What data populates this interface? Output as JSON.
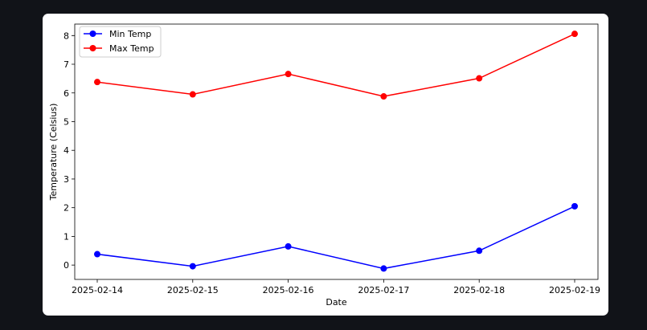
{
  "chart_data": {
    "type": "line",
    "categories": [
      "2025-02-14",
      "2025-02-15",
      "2025-02-16",
      "2025-02-17",
      "2025-02-18",
      "2025-02-19"
    ],
    "series": [
      {
        "name": "Min Temp",
        "color": "#0000ff",
        "values": [
          0.38,
          -0.04,
          0.65,
          -0.12,
          0.5,
          2.05
        ]
      },
      {
        "name": "Max Temp",
        "color": "#ff0000",
        "values": [
          6.38,
          5.95,
          6.66,
          5.88,
          6.51,
          8.06
        ]
      }
    ],
    "title": "",
    "xlabel": "Date",
    "ylabel": "Temperature (Celsius)",
    "ylim": [
      -0.5,
      8.4
    ],
    "yticks": [
      0,
      1,
      2,
      3,
      4,
      5,
      6,
      7,
      8
    ],
    "grid": false,
    "legend_position": "top-left"
  }
}
